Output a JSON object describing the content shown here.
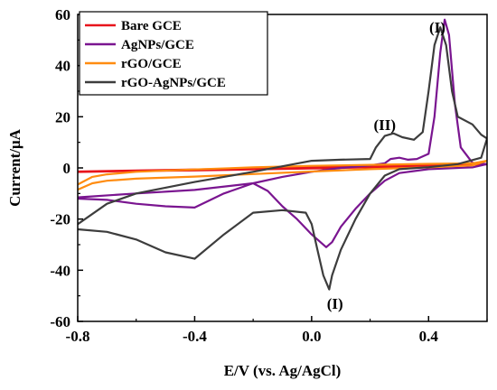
{
  "chart_data": {
    "type": "line",
    "xlabel": "E/V (vs. Ag/AgCl)",
    "ylabel": "Current/μA",
    "xlim": [
      -0.8,
      0.6
    ],
    "ylim": [
      -60,
      60
    ],
    "x_ticks": [
      "-0.8",
      "-0.4",
      "0.0",
      "0.4"
    ],
    "y_ticks": [
      "-60",
      "-40",
      "-20",
      "0",
      "20",
      "40",
      "60"
    ],
    "grid": false,
    "legend_position": "top-left",
    "series": [
      {
        "name": "Bare GCE",
        "color": "#e8141c",
        "points": [
          [
            -0.8,
            -1.4
          ],
          [
            -0.6,
            -1.0
          ],
          [
            -0.4,
            -0.6
          ],
          [
            -0.2,
            -0.2
          ],
          [
            0.0,
            0.2
          ],
          [
            0.2,
            0.6
          ],
          [
            0.4,
            1.0
          ],
          [
            0.6,
            1.4
          ],
          [
            0.4,
            0.6
          ],
          [
            0.2,
            0.2
          ],
          [
            0.0,
            -0.2
          ],
          [
            -0.2,
            -0.6
          ],
          [
            -0.4,
            -1.0
          ],
          [
            -0.6,
            -1.2
          ],
          [
            -0.8,
            -1.6
          ]
        ]
      },
      {
        "name": "AgNPs/GCE",
        "color": "#7a1590",
        "points": [
          [
            -0.8,
            -11.5
          ],
          [
            -0.6,
            -10
          ],
          [
            -0.4,
            -8.6
          ],
          [
            -0.2,
            -6
          ],
          [
            -0.1,
            -3.5
          ],
          [
            0.0,
            -1.5
          ],
          [
            0.1,
            0.0
          ],
          [
            0.2,
            1.0
          ],
          [
            0.25,
            1.8
          ],
          [
            0.27,
            3.5
          ],
          [
            0.3,
            4.0
          ],
          [
            0.33,
            3.2
          ],
          [
            0.36,
            3.5
          ],
          [
            0.4,
            5.5
          ],
          [
            0.42,
            20
          ],
          [
            0.44,
            45
          ],
          [
            0.455,
            58
          ],
          [
            0.47,
            52
          ],
          [
            0.49,
            25
          ],
          [
            0.51,
            8
          ],
          [
            0.55,
            2.0
          ],
          [
            0.6,
            1.5
          ],
          [
            0.55,
            0.2
          ],
          [
            0.5,
            0.0
          ],
          [
            0.4,
            -0.5
          ],
          [
            0.3,
            -2
          ],
          [
            0.25,
            -5
          ],
          [
            0.2,
            -10
          ],
          [
            0.15,
            -16
          ],
          [
            0.1,
            -23
          ],
          [
            0.07,
            -29
          ],
          [
            0.05,
            -31
          ],
          [
            0.0,
            -26
          ],
          [
            -0.05,
            -20
          ],
          [
            -0.1,
            -15
          ],
          [
            -0.15,
            -9
          ],
          [
            -0.2,
            -6
          ],
          [
            -0.3,
            -10
          ],
          [
            -0.4,
            -15.5
          ],
          [
            -0.5,
            -15
          ],
          [
            -0.6,
            -14
          ],
          [
            -0.7,
            -12.5
          ],
          [
            -0.8,
            -12
          ]
        ]
      },
      {
        "name": "rGO/GCE",
        "color": "#ff8c10",
        "points": [
          [
            -0.8,
            -6.5
          ],
          [
            -0.75,
            -3.5
          ],
          [
            -0.7,
            -2.5
          ],
          [
            -0.6,
            -1.5
          ],
          [
            -0.4,
            -0.6
          ],
          [
            -0.2,
            0.2
          ],
          [
            0.0,
            0.8
          ],
          [
            0.2,
            1.2
          ],
          [
            0.4,
            1.6
          ],
          [
            0.55,
            1.8
          ],
          [
            0.6,
            2.8
          ],
          [
            0.55,
            1.0
          ],
          [
            0.4,
            0.2
          ],
          [
            0.2,
            -0.5
          ],
          [
            0.0,
            -1.4
          ],
          [
            -0.2,
            -2.4
          ],
          [
            -0.4,
            -3.4
          ],
          [
            -0.6,
            -4.2
          ],
          [
            -0.7,
            -5.0
          ],
          [
            -0.75,
            -6.0
          ],
          [
            -0.8,
            -8.5
          ]
        ]
      },
      {
        "name": "rGO-AgNPs/GCE",
        "color": "#3d3d3d",
        "points": [
          [
            -0.8,
            -22
          ],
          [
            -0.7,
            -14
          ],
          [
            -0.6,
            -10
          ],
          [
            -0.4,
            -5.5
          ],
          [
            -0.2,
            -1.5
          ],
          [
            0.0,
            2.8
          ],
          [
            0.1,
            3.2
          ],
          [
            0.2,
            3.5
          ],
          [
            0.22,
            8
          ],
          [
            0.25,
            12.5
          ],
          [
            0.28,
            13.5
          ],
          [
            0.31,
            12
          ],
          [
            0.35,
            11
          ],
          [
            0.38,
            14
          ],
          [
            0.4,
            30
          ],
          [
            0.42,
            48
          ],
          [
            0.44,
            55
          ],
          [
            0.46,
            48
          ],
          [
            0.48,
            30
          ],
          [
            0.5,
            20
          ],
          [
            0.55,
            17
          ],
          [
            0.58,
            13
          ],
          [
            0.6,
            11.5
          ],
          [
            0.58,
            4
          ],
          [
            0.5,
            1.5
          ],
          [
            0.4,
            0.3
          ],
          [
            0.3,
            -0.5
          ],
          [
            0.25,
            -3
          ],
          [
            0.2,
            -10
          ],
          [
            0.15,
            -20
          ],
          [
            0.1,
            -32
          ],
          [
            0.07,
            -42
          ],
          [
            0.06,
            -47.5
          ],
          [
            0.04,
            -42
          ],
          [
            0.02,
            -32
          ],
          [
            0.0,
            -22
          ],
          [
            -0.02,
            -17.5
          ],
          [
            -0.1,
            -16.5
          ],
          [
            -0.2,
            -17.5
          ],
          [
            -0.3,
            -26
          ],
          [
            -0.4,
            -35.5
          ],
          [
            -0.5,
            -33
          ],
          [
            -0.6,
            -28
          ],
          [
            -0.7,
            -25
          ],
          [
            -0.8,
            -24
          ]
        ]
      }
    ],
    "annotations": [
      {
        "text": "(I)",
        "x": 0.43,
        "y": 55
      },
      {
        "text": "(II)",
        "x": 0.25,
        "y": 17
      },
      {
        "text": "(I)",
        "x": 0.08,
        "y": -53
      }
    ]
  }
}
